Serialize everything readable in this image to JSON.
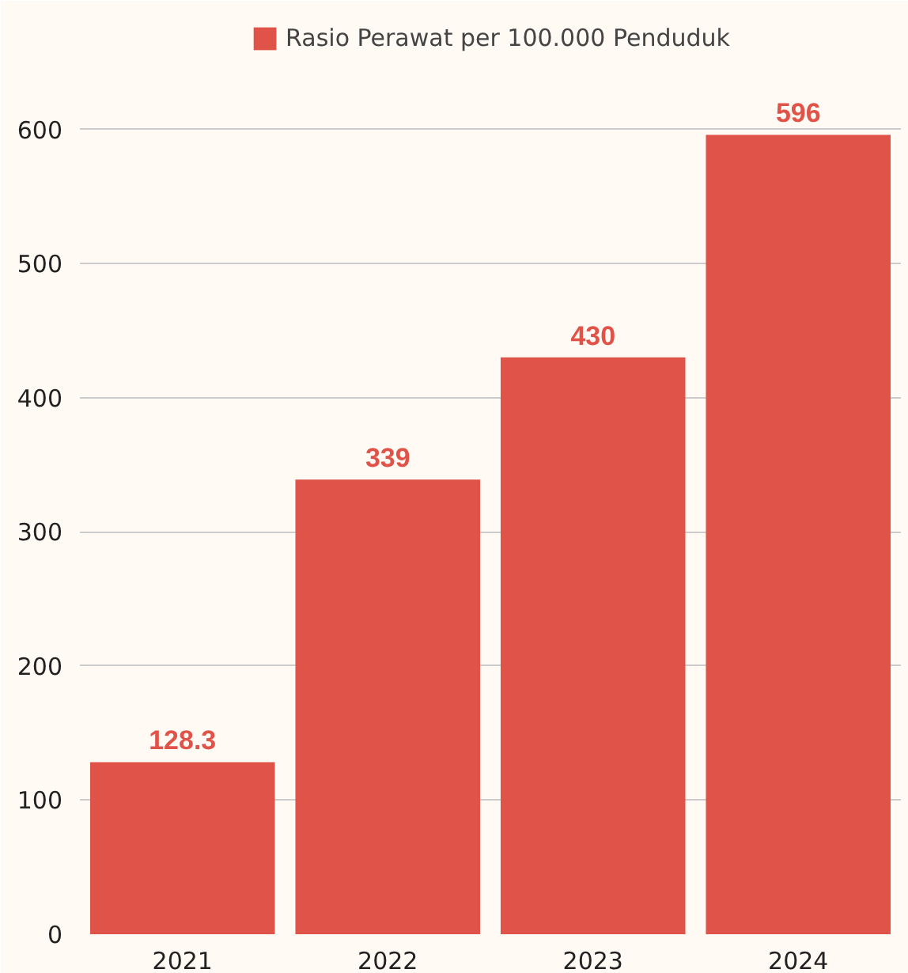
{
  "chart_data": {
    "type": "bar",
    "categories": [
      "2021",
      "2022",
      "2023",
      "2024"
    ],
    "series": [
      {
        "name": "Rasio Perawat per 100.000 Penduduk",
        "color": "#e05349",
        "values": [
          128.3,
          339,
          430,
          596
        ]
      }
    ],
    "ylim": [
      0,
      690
    ],
    "yticks": [
      0,
      100,
      200,
      300,
      400,
      500,
      600
    ],
    "grid": "y",
    "legend": "top",
    "data_labels": true
  }
}
